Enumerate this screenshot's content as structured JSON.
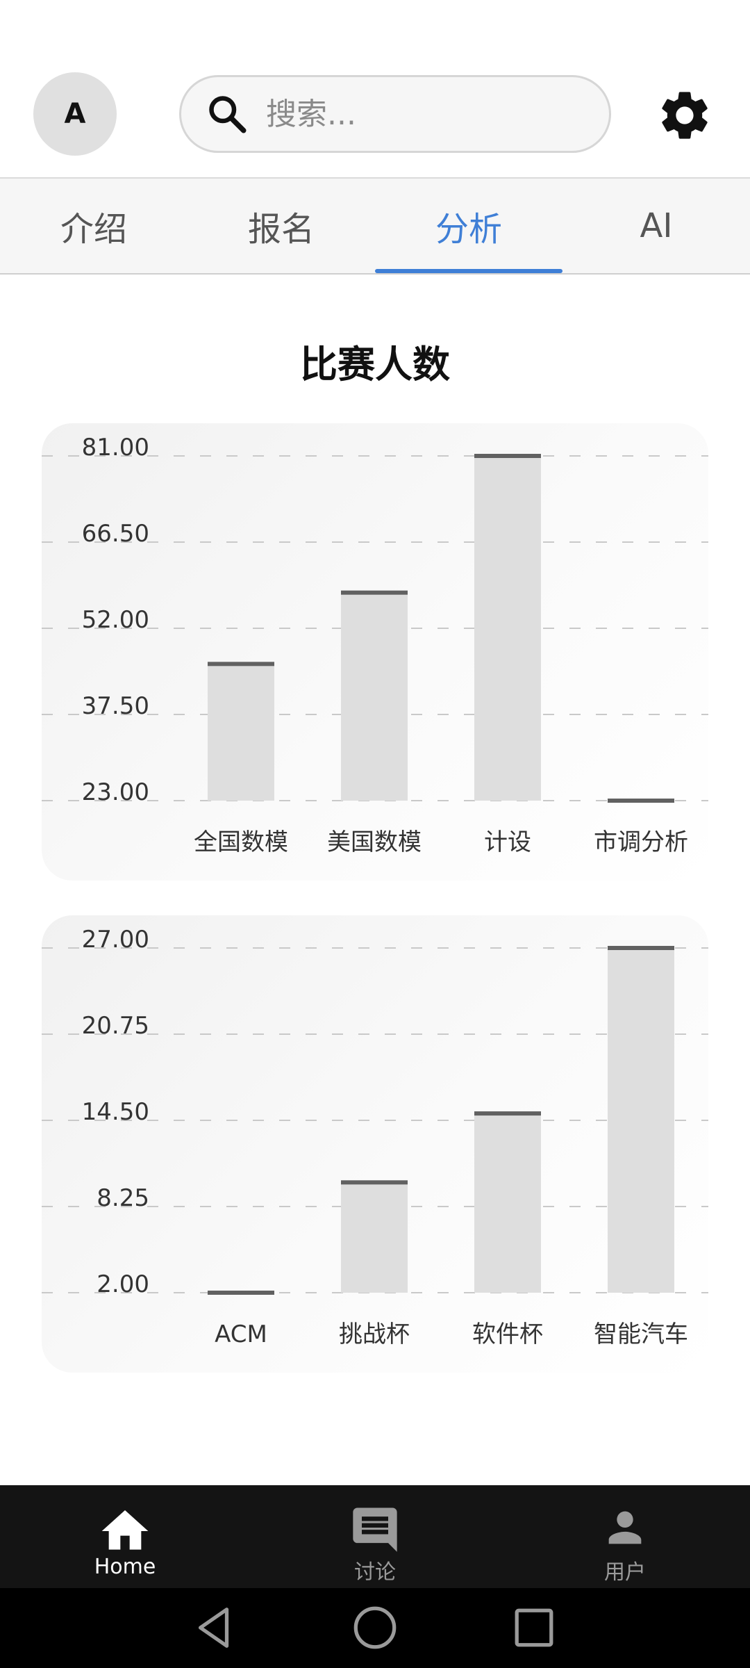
{
  "header": {
    "avatar_letter": "A",
    "search_placeholder": "搜索..."
  },
  "tabs": [
    {
      "label": "介绍",
      "active": false
    },
    {
      "label": "报名",
      "active": false
    },
    {
      "label": "分析",
      "active": true
    },
    {
      "label": "AI",
      "active": false
    }
  ],
  "section_title": "比赛人数",
  "chart_data": [
    {
      "type": "bar",
      "categories": [
        "全国数模",
        "美国数模",
        "计设",
        "市调分析"
      ],
      "values": [
        46,
        58,
        81,
        23
      ],
      "yticks": [
        "81.00",
        "66.50",
        "52.00",
        "37.50",
        "23.00"
      ],
      "ylim": [
        23,
        81
      ],
      "grid": true
    },
    {
      "type": "bar",
      "categories": [
        "ACM",
        "挑战杯",
        "软件杯",
        "智能汽车"
      ],
      "values": [
        2,
        10,
        15,
        27
      ],
      "yticks": [
        "27.00",
        "20.75",
        "14.50",
        "8.25",
        "2.00"
      ],
      "ylim": [
        2,
        27
      ],
      "grid": true
    }
  ],
  "colors": {
    "accent": "#3f7fd6",
    "bar_fill": "#dedede",
    "bar_cap": "#616161",
    "nav_background": "#141414"
  },
  "bottom_nav": [
    {
      "label": "Home",
      "icon": "home-icon",
      "active": true
    },
    {
      "label": "讨论",
      "icon": "chat-icon",
      "active": false
    },
    {
      "label": "用户",
      "icon": "person-icon",
      "active": false
    }
  ]
}
